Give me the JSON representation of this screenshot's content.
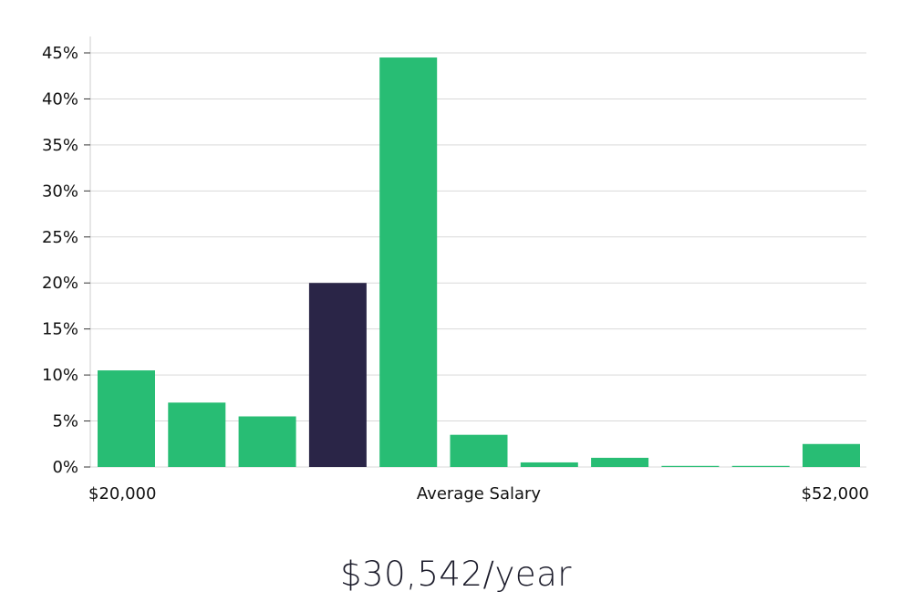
{
  "chart_data": {
    "type": "bar",
    "bins": 11,
    "values": [
      10.5,
      7,
      5.5,
      20,
      44.5,
      3.5,
      0.5,
      1,
      0.1,
      0.1,
      2.5
    ],
    "highlight_index": 3,
    "ylim": [
      0,
      45
    ],
    "yticks": [
      "0%",
      "5%",
      "10%",
      "15%",
      "20%",
      "25%",
      "30%",
      "35%",
      "40%",
      "45%"
    ],
    "grid": true,
    "x_labels": {
      "left": "$20,000",
      "center": "Average Salary",
      "right": "$52,000"
    },
    "colors": {
      "bar": "#28bd74",
      "highlight": "#2a2547",
      "grid": "#d9d9d9",
      "axis": "#cccccc"
    }
  },
  "summary": {
    "average_salary": "$30,542/year"
  }
}
